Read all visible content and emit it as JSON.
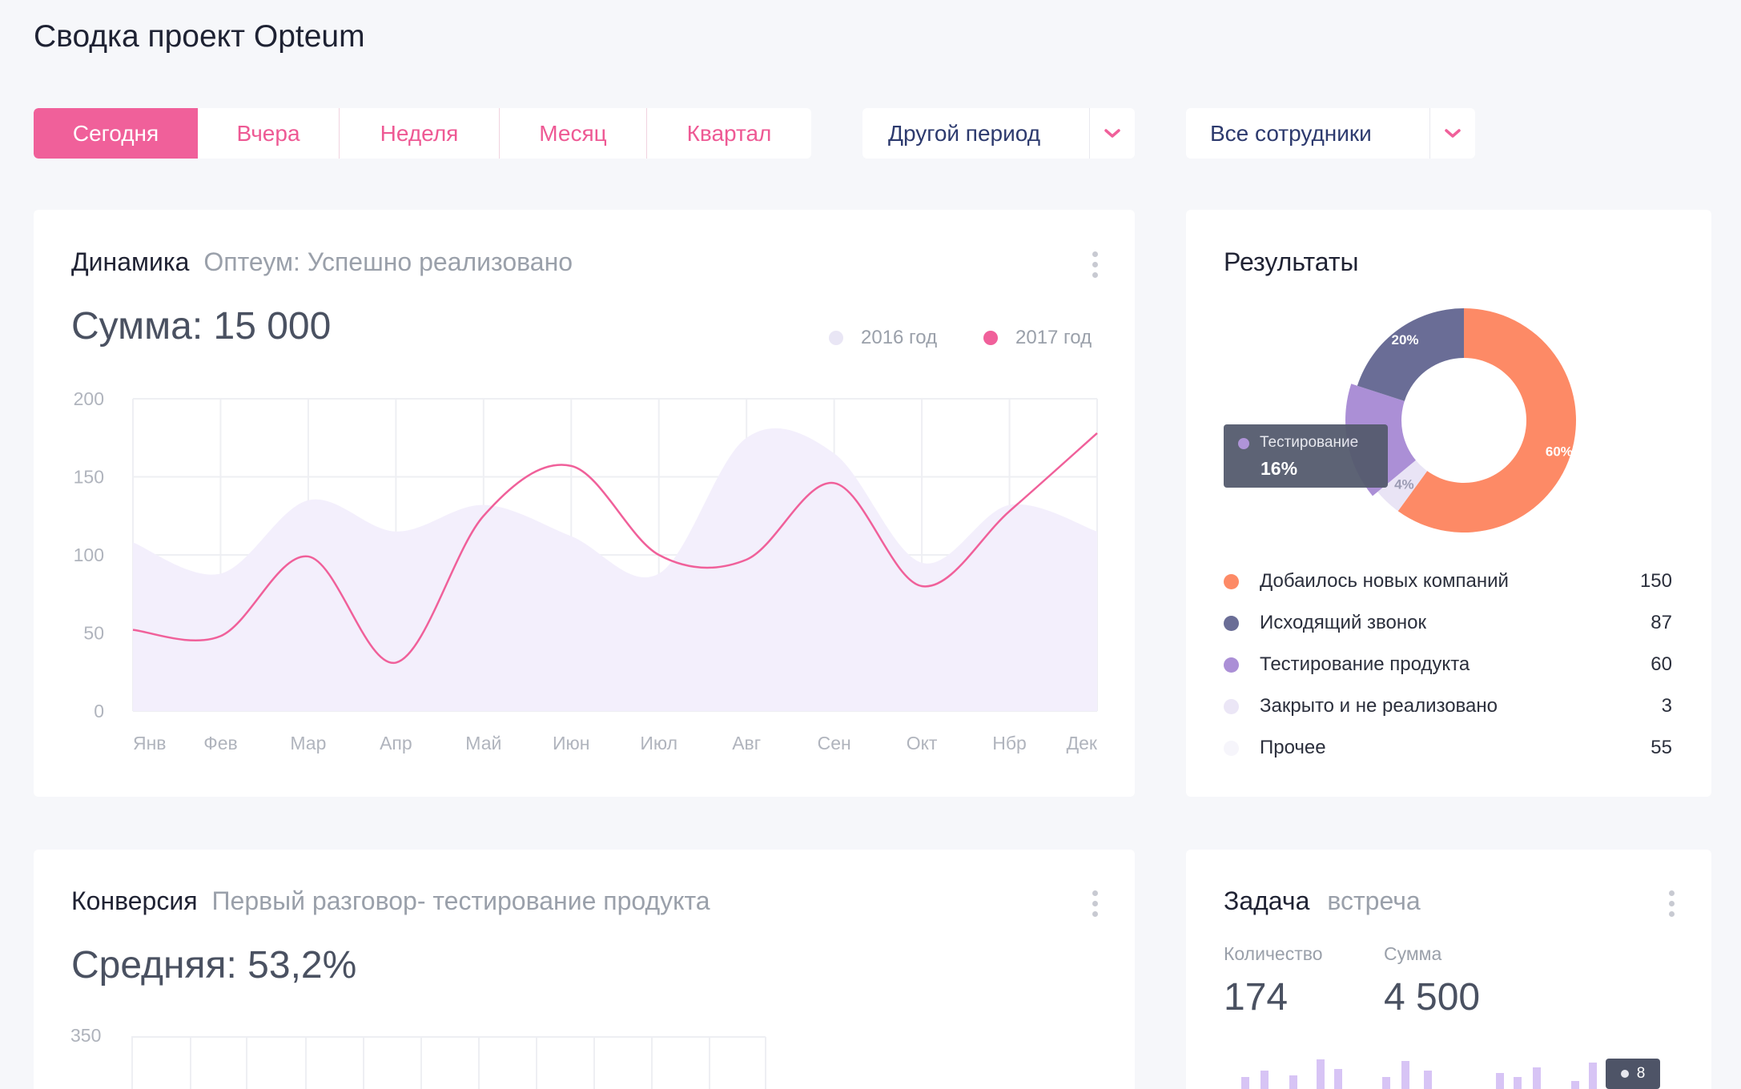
{
  "page_title": "Сводка проект Opteum",
  "period_tabs": [
    {
      "label": "Сегодня",
      "active": true
    },
    {
      "label": "Вчера",
      "active": false
    },
    {
      "label": "Неделя",
      "active": false
    },
    {
      "label": "Месяц",
      "active": false
    },
    {
      "label": "Квартал",
      "active": false
    }
  ],
  "period_dropdown": {
    "label": "Другой период"
  },
  "employees_dropdown": {
    "label": "Все сотрудники"
  },
  "dynamics": {
    "title": "Динамика",
    "subtitle": "Оптеум: Успешно реализовано",
    "sum": "Сумма: 15 000",
    "legend": [
      "2016 год",
      "2017 год"
    ]
  },
  "results": {
    "title": "Результаты",
    "tooltip": {
      "label": "Тестирование",
      "value": "16%"
    },
    "items": [
      {
        "label": "Добаилось новых компаний",
        "value": "150",
        "color": "#fd8a66"
      },
      {
        "label": "Исходящий звонок",
        "value": "87",
        "color": "#6a6d96"
      },
      {
        "label": "Тестирование продукта",
        "value": "60",
        "color": "#ab8fd6"
      },
      {
        "label": "Закрыто и не реализовано",
        "value": "3",
        "color": "#e9e4f5"
      },
      {
        "label": "Прочее",
        "value": "55",
        "color": "#f6f5fb"
      }
    ]
  },
  "conversion": {
    "title": "Конверсия",
    "subtitle": "Первый разговор- тестирование продукта",
    "average": "Средняя: 53,2%",
    "y_top_label": "350"
  },
  "task": {
    "title": "Задача",
    "subtitle": "встреча",
    "count_label": "Количество",
    "count_value": "174",
    "sum_label": "Сумма",
    "sum_value": "4 500",
    "badge": "8"
  },
  "chart_data": [
    {
      "type": "area",
      "ylim": [
        0,
        200
      ],
      "yticks": [
        0,
        50,
        100,
        150,
        200
      ],
      "categories": [
        "Янв",
        "Фев",
        "Мар",
        "Апр",
        "Май",
        "Июн",
        "Июл",
        "Авг",
        "Сен",
        "Окт",
        "Нбр",
        "Дек"
      ],
      "series": [
        {
          "name": "2016 год",
          "kind": "area",
          "color": "#f3effc",
          "values": [
            108,
            88,
            135,
            115,
            132,
            112,
            88,
            175,
            165,
            95,
            132,
            115
          ]
        },
        {
          "name": "2017 год",
          "kind": "line",
          "color": "#f0609a",
          "values": [
            52,
            48,
            99,
            31,
            125,
            157,
            100,
            97,
            146,
            80,
            128,
            178
          ]
        }
      ]
    },
    {
      "type": "pie",
      "slices": [
        {
          "label": "60%",
          "value": 60,
          "color": "#fd8a66"
        },
        {
          "label": "4%",
          "value": 4,
          "color": "#e9e4f5"
        },
        {
          "label": "Тестирование",
          "value": 16,
          "color": "#ab8fd6"
        },
        {
          "label": "20%",
          "value": 20,
          "color": "#6a6d96"
        }
      ]
    }
  ]
}
